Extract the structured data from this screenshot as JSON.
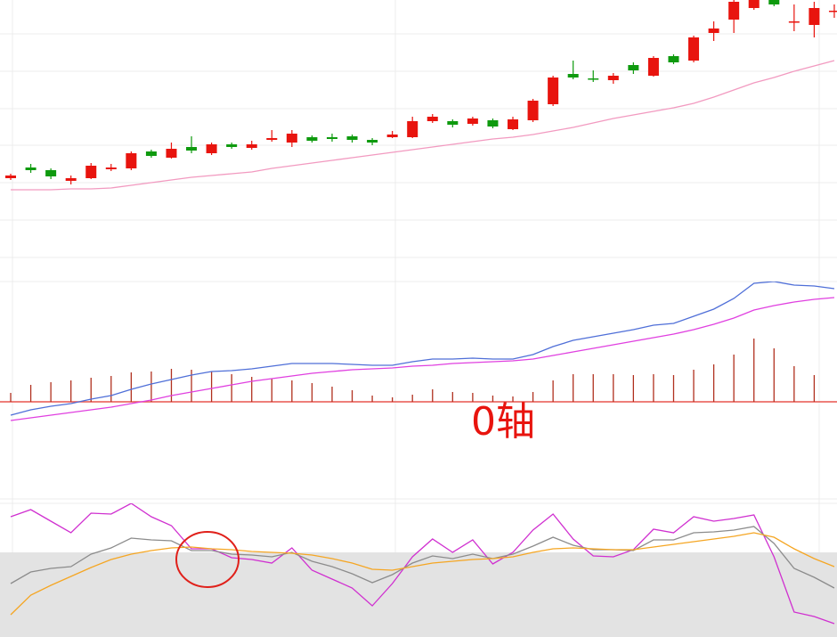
{
  "chart_data": [
    {
      "type": "candlestick",
      "categories": [
        null,
        null,
        null,
        null,
        null,
        null,
        null,
        null,
        null,
        null,
        null,
        null,
        null,
        null,
        null,
        null,
        null,
        null,
        null,
        null,
        null,
        null,
        null,
        null,
        null,
        null,
        null,
        null,
        null,
        null,
        null,
        null,
        null,
        null,
        null,
        null,
        null,
        null,
        null,
        null,
        null,
        null
      ],
      "open": [
        90,
        102,
        99,
        87,
        90,
        100,
        101,
        120,
        113,
        125,
        118,
        128,
        124,
        133,
        130,
        136,
        136,
        137,
        133,
        136,
        136,
        154,
        154,
        151,
        155,
        145,
        155,
        173,
        207,
        202,
        200,
        217,
        205,
        227,
        222,
        253,
        268,
        281,
        292,
        265,
        262,
        277
      ],
      "close": [
        93,
        99,
        92,
        90,
        104,
        102,
        118,
        115,
        123,
        121,
        128,
        125,
        128,
        135,
        140,
        132,
        134,
        133,
        130,
        139,
        154,
        159,
        150,
        157,
        148,
        156,
        177,
        203,
        203,
        201,
        205,
        211,
        225,
        220,
        248,
        258,
        288,
        292,
        285,
        266,
        281,
        278
      ],
      "high": [
        95,
        106,
        101,
        93,
        107,
        106,
        120,
        122,
        130,
        137,
        130,
        130,
        132,
        144,
        144,
        138,
        140,
        139,
        135,
        143,
        159,
        162,
        156,
        159,
        157,
        159,
        179,
        205,
        222,
        211,
        208,
        220,
        227,
        229,
        250,
        266,
        290,
        295,
        296,
        285,
        288,
        285
      ],
      "low": [
        88,
        96,
        89,
        83,
        89,
        98,
        99,
        113,
        112,
        118,
        116,
        123,
        122,
        131,
        125,
        130,
        131,
        130,
        127,
        135,
        135,
        152,
        147,
        149,
        146,
        144,
        153,
        171,
        201,
        198,
        196,
        207,
        204,
        218,
        220,
        244,
        253,
        279,
        283,
        255,
        248,
        270
      ],
      "up_color": "#e8140e",
      "down_color": "#0e9a0e",
      "ylim": [
        0,
        290
      ],
      "series": [
        {
          "color": "#f29ac0",
          "values": [
            77,
            77,
            77,
            78,
            78,
            79,
            82,
            85,
            88,
            91,
            93,
            95,
            97,
            101,
            104,
            107,
            110,
            113,
            116,
            119,
            122,
            125,
            128,
            131,
            134,
            136,
            139,
            143,
            147,
            152,
            157,
            161,
            165,
            169,
            174,
            181,
            189,
            197,
            203,
            210,
            216,
            222
          ]
        }
      ]
    },
    {
      "type": "macd",
      "values": [
        10,
        19,
        22,
        24,
        27,
        29,
        33,
        34,
        37,
        36,
        34,
        31,
        28,
        26,
        24,
        21,
        17,
        13,
        7,
        5,
        8,
        14,
        11,
        10,
        7,
        6,
        11,
        24,
        31,
        31,
        31,
        30,
        31,
        30,
        36,
        42,
        53,
        71,
        60,
        40,
        30,
        null
      ],
      "color": "#b0301e",
      "zero_color": "#e8554e",
      "ylim": [
        -109,
        135
      ],
      "series": [
        {
          "color": "#4f6fd8",
          "values": [
            -15,
            -9,
            -5,
            -2,
            3,
            7,
            14,
            20,
            25,
            30,
            34,
            35,
            37,
            40,
            43,
            43,
            43,
            42,
            41,
            41,
            45,
            48,
            48,
            49,
            48,
            48,
            53,
            62,
            69,
            73,
            77,
            81,
            86,
            88,
            96,
            104,
            116,
            133,
            135,
            131,
            130,
            127
          ]
        },
        {
          "color": "#e040e0",
          "values": [
            -21,
            -18,
            -15,
            -12,
            -9,
            -6,
            -2,
            2,
            7,
            11,
            15,
            19,
            23,
            26,
            29,
            32,
            34,
            36,
            37,
            38,
            40,
            41,
            43,
            44,
            45,
            46,
            48,
            52,
            56,
            60,
            64,
            68,
            72,
            76,
            81,
            87,
            94,
            103,
            108,
            112,
            115,
            117
          ]
        }
      ],
      "annotation": "0轴",
      "annotation_color": "#e8140e"
    },
    {
      "type": "line",
      "ylim": [
        0,
        150
      ],
      "band": [
        0,
        95
      ],
      "band_color": "#e3e3e3",
      "series": [
        {
          "color": "#d030d0",
          "values": [
            135,
            143,
            130,
            117,
            139,
            138,
            150,
            135,
            125,
            99,
            99,
            89,
            87,
            83,
            100,
            75,
            65,
            55,
            35,
            60,
            90,
            110,
            95,
            109,
            82,
            95,
            120,
            138,
            110,
            91,
            90,
            98,
            121,
            117,
            135,
            130,
            133,
            137,
            90,
            28,
            23,
            15
          ]
        },
        {
          "color": "#8c8c8c",
          "values": [
            60,
            73,
            77,
            79,
            93,
            100,
            111,
            109,
            108,
            97,
            97,
            93,
            92,
            90,
            95,
            85,
            79,
            71,
            61,
            70,
            83,
            91,
            88,
            93,
            88,
            93,
            102,
            112,
            103,
            98,
            98,
            97,
            109,
            109,
            117,
            118,
            120,
            124,
            105,
            77,
            67,
            55
          ]
        },
        {
          "color": "#f5a623",
          "values": [
            25,
            47,
            58,
            68,
            78,
            87,
            93,
            97,
            100,
            101,
            99,
            98,
            96,
            95,
            94,
            92,
            88,
            83,
            76,
            75,
            79,
            83,
            85,
            87,
            88,
            90,
            95,
            99,
            100,
            99,
            98,
            98,
            101,
            104,
            107,
            110,
            113,
            117,
            112,
            99,
            88,
            79
          ]
        }
      ]
    }
  ]
}
